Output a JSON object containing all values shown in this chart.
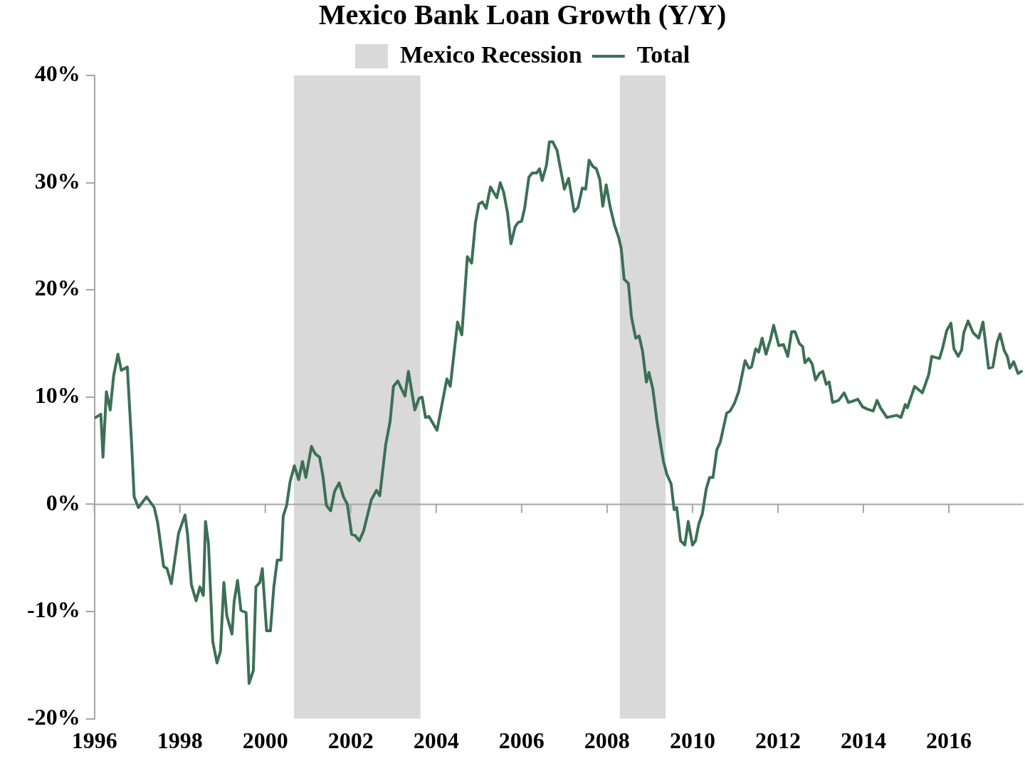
{
  "chart_data": {
    "type": "line",
    "title": "Mexico Bank Loan Growth (Y/Y)",
    "x": [
      1996.03,
      1996.15,
      1996.2,
      1996.28,
      1996.37,
      1996.45,
      1996.55,
      1996.63,
      1996.77,
      1996.87,
      1996.93,
      1997.03,
      1997.22,
      1997.4,
      1997.48,
      1997.62,
      1997.7,
      1997.8,
      1997.97,
      1998.12,
      1998.18,
      1998.27,
      1998.38,
      1998.47,
      1998.55,
      1998.6,
      1998.67,
      1998.77,
      1998.87,
      1998.95,
      1999.03,
      1999.1,
      1999.22,
      1999.27,
      1999.35,
      1999.43,
      1999.55,
      1999.62,
      1999.72,
      1999.78,
      1999.87,
      1999.93,
      2000.03,
      2000.12,
      2000.2,
      2000.28,
      2000.37,
      2000.42,
      2000.5,
      2000.58,
      2000.68,
      2000.78,
      2000.87,
      2000.95,
      2001.08,
      2001.17,
      2001.27,
      2001.35,
      2001.43,
      2001.53,
      2001.62,
      2001.73,
      2001.83,
      2001.92,
      2002.02,
      2002.1,
      2002.2,
      2002.3,
      2002.48,
      2002.6,
      2002.68,
      2002.82,
      2002.92,
      2003.0,
      2003.1,
      2003.27,
      2003.35,
      2003.5,
      2003.6,
      2003.67,
      2003.75,
      2003.83,
      2004.02,
      2004.25,
      2004.33,
      2004.5,
      2004.6,
      2004.73,
      2004.83,
      2004.92,
      2005.0,
      2005.08,
      2005.17,
      2005.27,
      2005.42,
      2005.5,
      2005.58,
      2005.67,
      2005.75,
      2005.85,
      2005.92,
      2006.0,
      2006.07,
      2006.17,
      2006.25,
      2006.35,
      2006.42,
      2006.48,
      2006.58,
      2006.65,
      2006.73,
      2006.83,
      2006.92,
      2007.0,
      2007.1,
      2007.23,
      2007.32,
      2007.42,
      2007.5,
      2007.58,
      2007.67,
      2007.75,
      2007.83,
      2007.9,
      2007.98,
      2008.07,
      2008.17,
      2008.27,
      2008.33,
      2008.4,
      2008.5,
      2008.57,
      2008.67,
      2008.75,
      2008.83,
      2008.92,
      2008.98,
      2009.07,
      2009.17,
      2009.32,
      2009.4,
      2009.5,
      2009.57,
      2009.63,
      2009.72,
      2009.82,
      2009.9,
      2010.0,
      2010.07,
      2010.15,
      2010.23,
      2010.32,
      2010.4,
      2010.48,
      2010.57,
      2010.65,
      2010.8,
      2010.88,
      2010.98,
      2011.08,
      2011.23,
      2011.32,
      2011.38,
      2011.48,
      2011.55,
      2011.63,
      2011.72,
      2011.82,
      2011.9,
      2012.02,
      2012.13,
      2012.23,
      2012.32,
      2012.4,
      2012.5,
      2012.58,
      2012.63,
      2012.72,
      2012.8,
      2012.88,
      2012.97,
      2013.05,
      2013.13,
      2013.2,
      2013.28,
      2013.42,
      2013.55,
      2013.65,
      2013.73,
      2013.87,
      2013.98,
      2014.08,
      2014.23,
      2014.32,
      2014.4,
      2014.55,
      2014.78,
      2014.88,
      2014.98,
      2015.03,
      2015.2,
      2015.38,
      2015.53,
      2015.6,
      2015.78,
      2015.85,
      2015.95,
      2016.05,
      2016.12,
      2016.22,
      2016.3,
      2016.35,
      2016.45,
      2016.57,
      2016.7,
      2016.8,
      2016.93,
      2017.03,
      2017.13,
      2017.2,
      2017.3,
      2017.37,
      2017.43,
      2017.52,
      2017.62,
      2017.7
    ],
    "series": [
      {
        "name": "Total",
        "color": "#3c7056",
        "values": [
          8.1,
          8.4,
          4.4,
          10.5,
          8.8,
          12.0,
          14.0,
          12.5,
          12.8,
          5.7,
          0.7,
          -0.3,
          0.7,
          -0.3,
          -1.7,
          -5.8,
          -6.0,
          -7.4,
          -2.7,
          -1.0,
          -2.8,
          -7.5,
          -9.0,
          -7.7,
          -8.5,
          -1.6,
          -3.7,
          -12.8,
          -14.8,
          -13.7,
          -7.3,
          -10.4,
          -12.1,
          -9.1,
          -7.1,
          -9.9,
          -10.1,
          -16.7,
          -15.5,
          -7.7,
          -7.3,
          -6.0,
          -11.8,
          -11.8,
          -7.7,
          -5.2,
          -5.2,
          -1.1,
          -0.1,
          2.1,
          3.6,
          2.3,
          4.0,
          2.5,
          5.4,
          4.7,
          4.4,
          2.6,
          -0.1,
          -0.6,
          1.2,
          2.0,
          0.7,
          0.0,
          -2.8,
          -2.9,
          -3.4,
          -2.5,
          0.4,
          1.3,
          0.8,
          5.6,
          7.7,
          11.0,
          11.5,
          10.1,
          12.4,
          8.8,
          9.9,
          10.0,
          8.1,
          8.2,
          6.9,
          11.7,
          11.0,
          17.0,
          15.8,
          23.1,
          22.5,
          26.3,
          28.0,
          28.2,
          27.6,
          29.6,
          28.6,
          30.0,
          29.1,
          27.2,
          24.3,
          25.9,
          26.3,
          26.4,
          27.6,
          30.5,
          30.9,
          30.9,
          31.3,
          30.2,
          31.6,
          33.8,
          33.8,
          33.0,
          31.1,
          29.4,
          30.4,
          27.3,
          27.7,
          29.5,
          29.4,
          32.1,
          31.5,
          31.3,
          30.3,
          27.8,
          29.8,
          27.8,
          26.1,
          24.9,
          23.9,
          21.0,
          20.6,
          17.5,
          15.5,
          15.7,
          14.3,
          11.4,
          12.3,
          10.8,
          7.7,
          4.0,
          2.8,
          1.9,
          -0.5,
          -0.3,
          -3.4,
          -3.8,
          -1.6,
          -3.8,
          -3.4,
          -1.8,
          -0.9,
          1.4,
          2.5,
          2.5,
          5.1,
          5.8,
          8.5,
          8.7,
          9.4,
          10.5,
          13.4,
          12.7,
          12.8,
          14.5,
          14.2,
          15.5,
          14.0,
          15.3,
          16.7,
          14.8,
          14.9,
          13.8,
          16.1,
          16.1,
          15.0,
          14.7,
          13.2,
          13.6,
          13.1,
          11.6,
          12.2,
          12.4,
          11.2,
          11.4,
          9.5,
          9.7,
          10.4,
          9.5,
          9.6,
          9.8,
          9.1,
          8.9,
          8.7,
          9.7,
          9.0,
          8.1,
          8.3,
          8.1,
          9.3,
          9.0,
          11.0,
          10.4,
          12.1,
          13.8,
          13.6,
          14.5,
          16.2,
          16.9,
          14.5,
          13.8,
          14.4,
          16.0,
          17.1,
          16.0,
          15.5,
          17.0,
          12.7,
          12.8,
          15.1,
          15.9,
          14.3,
          13.8,
          12.7,
          13.3,
          12.2,
          12.4
        ]
      }
    ],
    "xlim": [
      1996,
      2017.75
    ],
    "xticks": [
      1996,
      1998,
      2000,
      2002,
      2004,
      2006,
      2008,
      2010,
      2012,
      2014,
      2016
    ],
    "ylim": [
      -20,
      40
    ],
    "yticks": [
      {
        "value": -20,
        "label": "-20%"
      },
      {
        "value": -10,
        "label": "-10%"
      },
      {
        "value": 0,
        "label": "0%"
      },
      {
        "value": 10,
        "label": "10%"
      },
      {
        "value": 20,
        "label": "20%"
      },
      {
        "value": 30,
        "label": "30%"
      },
      {
        "value": 40,
        "label": "40%"
      }
    ],
    "bands": [
      {
        "axis": "x",
        "from": 2000.67,
        "to": 2003.63,
        "label": "Mexico Recession",
        "color": "#d9d9d9"
      },
      {
        "axis": "x",
        "from": 2008.3,
        "to": 2009.37,
        "color": "#d9d9d9"
      }
    ],
    "ref_lines": [
      {
        "axis": "y",
        "value": 0,
        "color": "#a6a6a6"
      }
    ],
    "grid": false,
    "legend": "top",
    "marker": "none",
    "line_style": "solid"
  }
}
